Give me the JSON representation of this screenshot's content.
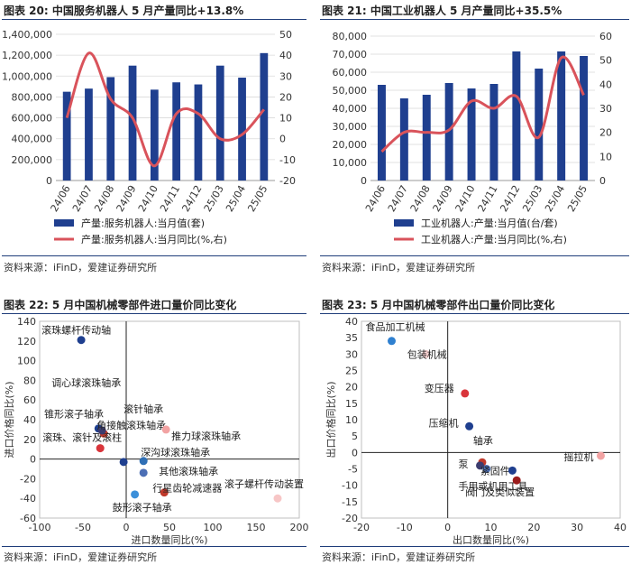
{
  "panels": {
    "p20": {
      "title": "图表 20:  中国服务机器人 5 月产量同比+13.8%",
      "source": "资料来源：iFinD，爱建证券研究所"
    },
    "p21": {
      "title": "图表 21:  中国工业机器人 5 月产量同比+35.5%",
      "source": "资料来源：iFinD，爱建证券研究所"
    },
    "p22": {
      "title": "图表 22:  5 月中国机械零部件进口量价同比变化",
      "source": "资料来源：iFinD，爱建证券研究所"
    },
    "p23": {
      "title": "图表 23:  5 月中国机械零部件出口量价同比变化",
      "source": "资料来源：iFinD，爱建证券研究所"
    }
  },
  "colors": {
    "bar": "#1f3f8f",
    "line": "#d9535b"
  },
  "chart_data": [
    {
      "id": "c20",
      "type": "bar+line",
      "categories": [
        "24/06",
        "24/07",
        "24/08",
        "24/09",
        "24/10",
        "24/11",
        "24/12",
        "25/03",
        "25/04",
        "25/05"
      ],
      "series": [
        {
          "name": "产量:服务机器人:当月值(套)",
          "axis": "left",
          "kind": "bar",
          "values": [
            850000,
            880000,
            990000,
            1100000,
            870000,
            940000,
            920000,
            1100000,
            985000,
            1220000
          ]
        },
        {
          "name": "产量:服务机器人:当月同比(%,右)",
          "axis": "right",
          "kind": "line",
          "values": [
            10,
            41,
            19,
            10,
            -13,
            12,
            12,
            0,
            2,
            14
          ]
        }
      ],
      "yleft": {
        "min": 0,
        "max": 1400000,
        "step": 200000,
        "ticks": [
          "0",
          "200,000",
          "400,000",
          "600,000",
          "800,000",
          "1,000,000",
          "1,200,000",
          "1,400,000"
        ]
      },
      "yright": {
        "min": -20,
        "max": 50,
        "step": 10,
        "ticks": [
          "-20",
          "-10",
          "0",
          "10",
          "20",
          "30",
          "40",
          "50"
        ]
      }
    },
    {
      "id": "c21",
      "type": "bar+line",
      "categories": [
        "24/06",
        "24/07",
        "24/08",
        "24/09",
        "24/10",
        "24/11",
        "24/12",
        "25/03",
        "25/04",
        "25/05"
      ],
      "series": [
        {
          "name": "工业机器人:产量:当月值(台/套)",
          "axis": "left",
          "kind": "bar",
          "values": [
            53000,
            45500,
            47500,
            54000,
            51000,
            53500,
            71500,
            62000,
            71500,
            69000
          ]
        },
        {
          "name": "工业机器人:产量:当月同比(%,右)",
          "axis": "right",
          "kind": "line",
          "values": [
            12,
            20,
            20,
            21,
            33,
            30,
            35,
            18,
            51,
            35.5
          ]
        }
      ],
      "yleft": {
        "min": 0,
        "max": 80000,
        "step": 10000,
        "ticks": [
          "0",
          "10,000",
          "20,000",
          "30,000",
          "40,000",
          "50,000",
          "60,000",
          "70,000",
          "80,000"
        ]
      },
      "yright": {
        "min": 0,
        "max": 60,
        "step": 10,
        "ticks": [
          "0",
          "10",
          "20",
          "30",
          "40",
          "50",
          "60"
        ]
      }
    },
    {
      "id": "c22",
      "type": "scatter",
      "xlabel": "进口数量同比(%)",
      "ylabel": "进口价格同比(%)",
      "xlim": [
        -100,
        200
      ],
      "ylim": [
        -60,
        140
      ],
      "xticks": [
        "-100",
        "-50",
        "0",
        "50",
        "100",
        "150",
        "200"
      ],
      "yticks": [
        "-60",
        "-40",
        "-20",
        "0",
        "20",
        "40",
        "60",
        "80",
        "100",
        "120",
        "140"
      ],
      "points": [
        {
          "label": "滚珠螺杆传动轴",
          "x": -52,
          "y": 121,
          "color": "#1f3f8f"
        },
        {
          "label": "调心球滚珠轴承",
          "x": -32,
          "y": 31,
          "color": "#1f3f8f"
        },
        {
          "label": "锥形滚子轴承",
          "x": -26,
          "y": 26,
          "color": "#c0392b"
        },
        {
          "label": "滚珠、滚针及滚柱",
          "x": -30,
          "y": 11,
          "color": "#d9353b"
        },
        {
          "label": "角接触滚珠轴承",
          "x": -28,
          "y": 29,
          "color": "#3c3c6e"
        },
        {
          "label": "滚针轴承",
          "x": -3,
          "y": -3,
          "color": "#1f3f8f"
        },
        {
          "label": "推力球滚珠轴承",
          "x": 46,
          "y": 30,
          "color": "#f2a3a3"
        },
        {
          "label": "深沟球滚珠轴承",
          "x": 20,
          "y": -2,
          "color": "#2f6fb5"
        },
        {
          "label": "其他滚珠轴承",
          "x": 20,
          "y": -14,
          "color": "#4c6fb5"
        },
        {
          "label": "行星齿轮减速器",
          "x": 44,
          "y": -34,
          "color": "#c0392b"
        },
        {
          "label": "鼓形滚子轴承",
          "x": 10,
          "y": -36,
          "color": "#3b8fd9"
        },
        {
          "label": "滚子螺杆传动装置",
          "x": 175,
          "y": -40,
          "color": "#f7c6c6"
        }
      ]
    },
    {
      "id": "c23",
      "type": "scatter",
      "xlabel": "出口数量同比(%)",
      "ylabel": "出口价格同比(%)",
      "xlim": [
        -20,
        40
      ],
      "ylim": [
        -20,
        40
      ],
      "xticks": [
        "-20",
        "-10",
        "0",
        "10",
        "20",
        "30",
        "40"
      ],
      "yticks": [
        "-20",
        "-15",
        "-10",
        "-5",
        "0",
        "5",
        "10",
        "15",
        "20",
        "25",
        "30",
        "35",
        "40"
      ],
      "points": [
        {
          "label": "食品加工机械",
          "x": -13,
          "y": 34,
          "color": "#2f80d0"
        },
        {
          "label": "包装机械",
          "x": -5,
          "y": 30,
          "color": "#f7d0d0"
        },
        {
          "label": "变压器",
          "x": 4,
          "y": 18,
          "color": "#d9353b"
        },
        {
          "label": "压缩机",
          "x": 5,
          "y": 8,
          "color": "#1f3f8f"
        },
        {
          "label": "轴承",
          "x": 8,
          "y": -3,
          "color": "#c0392b"
        },
        {
          "label": "泵",
          "x": 7.5,
          "y": -4,
          "color": "#3c3c6e"
        },
        {
          "label": "紧固件",
          "x": 9,
          "y": -5,
          "color": "#4c6fb5"
        },
        {
          "label": "手用或机用工具",
          "x": 15,
          "y": -5.5,
          "color": "#1f3f8f"
        },
        {
          "label": "阀门及类似装置",
          "x": 16,
          "y": -8.5,
          "color": "#9b1c1c"
        },
        {
          "label": "摇拉机",
          "x": 35.5,
          "y": -1,
          "color": "#f2a3a3"
        }
      ]
    }
  ]
}
